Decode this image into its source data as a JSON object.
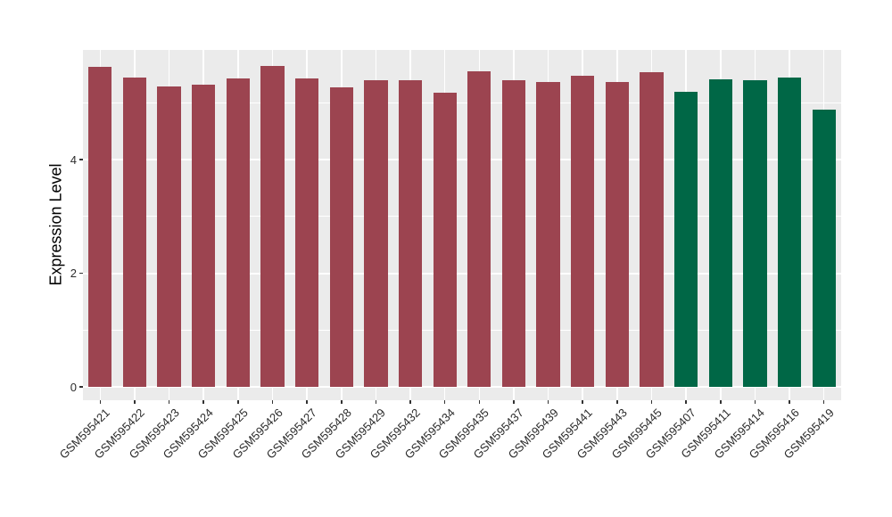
{
  "figure": {
    "background_color": "#ffffff",
    "panel_background_color": "#ebebeb",
    "gridline_color": "#ffffff",
    "tick_color": "#333333",
    "tick_label_color": "#2b2b2b",
    "axis_title_color": "#000000"
  },
  "chart_data": {
    "type": "bar",
    "title": "",
    "xlabel": "",
    "ylabel": "Expression Level",
    "ylim": [
      0,
      5.93
    ],
    "y_major_ticks": [
      0,
      2,
      4
    ],
    "y_minor_ticks": [
      1,
      3,
      5
    ],
    "grid": true,
    "legend_position": "none",
    "categories": [
      "GSM595421",
      "GSM595422",
      "GSM595423",
      "GSM595424",
      "GSM595425",
      "GSM595426",
      "GSM595427",
      "GSM595428",
      "GSM595429",
      "GSM595432",
      "GSM595434",
      "GSM595435",
      "GSM595437",
      "GSM595439",
      "GSM595441",
      "GSM595443",
      "GSM595445",
      "GSM595407",
      "GSM595411",
      "GSM595414",
      "GSM595416",
      "GSM595419"
    ],
    "values": [
      5.63,
      5.44,
      5.29,
      5.32,
      5.43,
      5.65,
      5.43,
      5.27,
      5.4,
      5.4,
      5.18,
      5.55,
      5.4,
      5.36,
      5.47,
      5.36,
      5.54,
      5.19,
      5.41,
      5.4,
      5.44,
      4.88
    ],
    "bar_colors": [
      "#9c4450",
      "#9c4450",
      "#9c4450",
      "#9c4450",
      "#9c4450",
      "#9c4450",
      "#9c4450",
      "#9c4450",
      "#9c4450",
      "#9c4450",
      "#9c4450",
      "#9c4450",
      "#9c4450",
      "#9c4450",
      "#9c4450",
      "#9c4450",
      "#9c4450",
      "#006746",
      "#006746",
      "#006746",
      "#006746",
      "#006746"
    ],
    "group_palette": {
      "group1": "#9c4450",
      "group2": "#006746"
    }
  }
}
